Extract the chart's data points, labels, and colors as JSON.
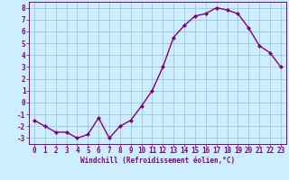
{
  "x": [
    0,
    1,
    2,
    3,
    4,
    5,
    6,
    7,
    8,
    9,
    10,
    11,
    12,
    13,
    14,
    15,
    16,
    17,
    18,
    19,
    20,
    21,
    22,
    23
  ],
  "y": [
    -1.5,
    -2.0,
    -2.5,
    -2.5,
    -3.0,
    -2.7,
    -1.3,
    -3.0,
    -2.0,
    -1.5,
    -0.3,
    1.0,
    3.0,
    5.5,
    6.5,
    7.3,
    7.5,
    8.0,
    7.8,
    7.5,
    6.3,
    4.8,
    4.2,
    3.0
  ],
  "line_color": "#800080",
  "marker": "D",
  "marker_size": 2,
  "bg_color": "#cceeff",
  "grid_color": "#99bbdd",
  "xlabel": "Windchill (Refroidissement éolien,°C)",
  "xlim": [
    -0.5,
    23.5
  ],
  "ylim": [
    -3.5,
    8.5
  ],
  "yticks": [
    -3,
    -2,
    -1,
    0,
    1,
    2,
    3,
    4,
    5,
    6,
    7,
    8
  ],
  "xticks": [
    0,
    1,
    2,
    3,
    4,
    5,
    6,
    7,
    8,
    9,
    10,
    11,
    12,
    13,
    14,
    15,
    16,
    17,
    18,
    19,
    20,
    21,
    22,
    23
  ],
  "line_width": 1.0,
  "tick_color": "#800080",
  "spine_color": "#800080",
  "xlabel_fontsize": 5.5,
  "tick_fontsize": 5.5
}
